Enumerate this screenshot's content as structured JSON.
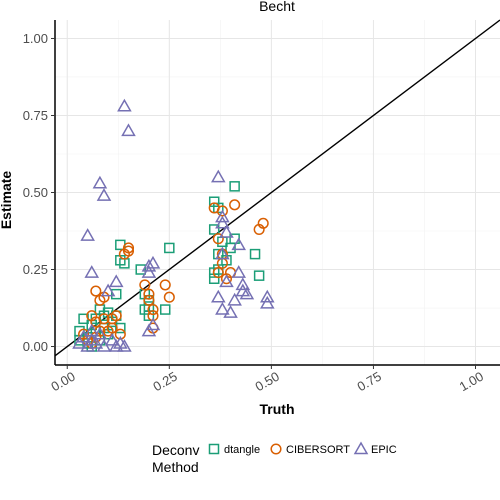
{
  "chart_data": {
    "type": "scatter",
    "title": "Becht",
    "xlabel": "Truth",
    "ylabel": "Estimate",
    "xlim": [
      -0.03,
      1.06
    ],
    "ylim": [
      -0.06,
      1.06
    ],
    "xticks": [
      0,
      0.25,
      0.5,
      0.75,
      1.0
    ],
    "xtick_labels": [
      "0.00",
      "0.25",
      "0.50",
      "0.75",
      "1.00"
    ],
    "yticks": [
      0,
      0.25,
      0.5,
      0.75,
      1.0
    ],
    "ytick_labels": [
      "0.00",
      "0.25",
      "0.50",
      "0.75",
      "1.00"
    ],
    "grid": true,
    "reference_line": {
      "slope": 1,
      "intercept": 0
    },
    "legend": {
      "title_lines": [
        "Deconv",
        "Method"
      ],
      "position": "bottom"
    },
    "series": [
      {
        "name": "dtangle",
        "marker": "square",
        "color": "#1b9e77",
        "points": [
          [
            0.07,
            0.09
          ],
          [
            0.09,
            0.1
          ],
          [
            0.1,
            0.11
          ],
          [
            0.12,
            0.17
          ],
          [
            0.13,
            0.33
          ],
          [
            0.13,
            0.28
          ],
          [
            0.14,
            0.27
          ],
          [
            0.18,
            0.25
          ],
          [
            0.2,
            0.1
          ],
          [
            0.19,
            0.12
          ],
          [
            0.2,
            0.13
          ],
          [
            0.2,
            0.15
          ],
          [
            0.19,
            0.17
          ],
          [
            0.24,
            0.12
          ],
          [
            0.25,
            0.32
          ],
          [
            0.36,
            0.47
          ],
          [
            0.37,
            0.45
          ],
          [
            0.36,
            0.38
          ],
          [
            0.38,
            0.34
          ],
          [
            0.37,
            0.25
          ],
          [
            0.36,
            0.24
          ],
          [
            0.36,
            0.22
          ],
          [
            0.41,
            0.52
          ],
          [
            0.41,
            0.35
          ],
          [
            0.4,
            0.32
          ],
          [
            0.37,
            0.3
          ],
          [
            0.39,
            0.28
          ],
          [
            0.46,
            0.3
          ],
          [
            0.47,
            0.23
          ],
          [
            0.03,
            0.05
          ],
          [
            0.03,
            0.02
          ],
          [
            0.05,
            0.01
          ],
          [
            0.04,
            0.09
          ],
          [
            0.05,
            0.03
          ],
          [
            0.06,
            0.0
          ],
          [
            0.07,
            0.05
          ],
          [
            0.08,
            0.12
          ],
          [
            0.09,
            0.06
          ],
          [
            0.1,
            0.04
          ],
          [
            0.11,
            0.08
          ],
          [
            0.12,
            0.1
          ],
          [
            0.13,
            0.06
          ],
          [
            0.06,
            0.07
          ],
          [
            0.08,
            0.02
          ]
        ]
      },
      {
        "name": "CIBERSORT",
        "marker": "circle",
        "color": "#d95f02",
        "points": [
          [
            0.07,
            0.18
          ],
          [
            0.08,
            0.15
          ],
          [
            0.09,
            0.16
          ],
          [
            0.06,
            0.1
          ],
          [
            0.07,
            0.08
          ],
          [
            0.11,
            0.09
          ],
          [
            0.12,
            0.1
          ],
          [
            0.11,
            0.06
          ],
          [
            0.13,
            0.04
          ],
          [
            0.14,
            0.3
          ],
          [
            0.15,
            0.32
          ],
          [
            0.15,
            0.31
          ],
          [
            0.19,
            0.2
          ],
          [
            0.2,
            0.15
          ],
          [
            0.2,
            0.17
          ],
          [
            0.21,
            0.12
          ],
          [
            0.21,
            0.1
          ],
          [
            0.21,
            0.06
          ],
          [
            0.24,
            0.2
          ],
          [
            0.25,
            0.16
          ],
          [
            0.36,
            0.45
          ],
          [
            0.38,
            0.44
          ],
          [
            0.41,
            0.46
          ],
          [
            0.37,
            0.35
          ],
          [
            0.38,
            0.3
          ],
          [
            0.37,
            0.24
          ],
          [
            0.38,
            0.27
          ],
          [
            0.39,
            0.22
          ],
          [
            0.4,
            0.24
          ],
          [
            0.47,
            0.38
          ],
          [
            0.48,
            0.4
          ],
          [
            0.05,
            0.02
          ],
          [
            0.04,
            0.04
          ],
          [
            0.06,
            0.01
          ],
          [
            0.07,
            0.03
          ],
          [
            0.08,
            0.05
          ],
          [
            0.09,
            0.09
          ],
          [
            0.1,
            0.05
          ]
        ]
      },
      {
        "name": "EPIC",
        "marker": "triangle",
        "color": "#7570b3",
        "points": [
          [
            0.14,
            0.78
          ],
          [
            0.15,
            0.7
          ],
          [
            0.08,
            0.53
          ],
          [
            0.09,
            0.49
          ],
          [
            0.05,
            0.36
          ],
          [
            0.06,
            0.24
          ],
          [
            0.12,
            0.21
          ],
          [
            0.1,
            0.18
          ],
          [
            0.2,
            0.26
          ],
          [
            0.2,
            0.24
          ],
          [
            0.21,
            0.27
          ],
          [
            0.21,
            0.07
          ],
          [
            0.2,
            0.05
          ],
          [
            0.37,
            0.55
          ],
          [
            0.38,
            0.42
          ],
          [
            0.38,
            0.4
          ],
          [
            0.39,
            0.37
          ],
          [
            0.38,
            0.3
          ],
          [
            0.39,
            0.21
          ],
          [
            0.37,
            0.16
          ],
          [
            0.38,
            0.12
          ],
          [
            0.4,
            0.11
          ],
          [
            0.42,
            0.33
          ],
          [
            0.42,
            0.24
          ],
          [
            0.43,
            0.2
          ],
          [
            0.43,
            0.18
          ],
          [
            0.44,
            0.17
          ],
          [
            0.41,
            0.15
          ],
          [
            0.49,
            0.16
          ],
          [
            0.49,
            0.14
          ],
          [
            0.03,
            0.01
          ],
          [
            0.04,
            0.03
          ],
          [
            0.05,
            0.0
          ],
          [
            0.06,
            0.02
          ],
          [
            0.06,
            0.05
          ],
          [
            0.07,
            0.01
          ],
          [
            0.08,
            0.04
          ],
          [
            0.09,
            0.0
          ],
          [
            0.11,
            0.02
          ],
          [
            0.12,
            0.0
          ],
          [
            0.13,
            0.01
          ],
          [
            0.14,
            0.0
          ]
        ]
      }
    ]
  }
}
